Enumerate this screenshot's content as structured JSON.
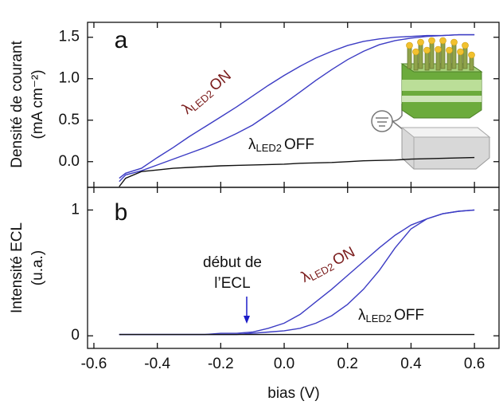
{
  "chart_data": [
    {
      "type": "line",
      "panel_label": "a",
      "y_label": [
        "Densité de courant",
        "(mA cm⁻²)"
      ],
      "x": [
        -0.52,
        -0.5,
        -0.45,
        -0.4,
        -0.35,
        -0.3,
        -0.25,
        -0.2,
        -0.15,
        -0.1,
        -0.05,
        0,
        0.05,
        0.1,
        0.15,
        0.2,
        0.25,
        0.3,
        0.35,
        0.4,
        0.45,
        0.5,
        0.55,
        0.6
      ],
      "xlim": [
        -0.62,
        0.68
      ],
      "ylim": [
        -0.31,
        1.68
      ],
      "yticks": [
        {
          "value": 0,
          "label": "0.0"
        },
        0.5,
        {
          "value": 1,
          "label": "1.0"
        },
        1.5
      ],
      "series": [
        {
          "color": "#3c3cc4",
          "values": [
            -0.2,
            -0.14,
            -0.08,
            0.05,
            0.17,
            0.3,
            0.42,
            0.54,
            0.66,
            0.79,
            0.92,
            1.04,
            1.15,
            1.25,
            1.33,
            1.4,
            1.45,
            1.48,
            1.5,
            1.51,
            1.52,
            1.52,
            1.53,
            1.53
          ]
        },
        {
          "color": "#3c3cc4",
          "values": [
            -0.24,
            -0.16,
            -0.11,
            -0.04,
            0.03,
            0.1,
            0.17,
            0.25,
            0.34,
            0.44,
            0.57,
            0.7,
            0.84,
            0.98,
            1.11,
            1.23,
            1.33,
            1.41,
            1.46,
            1.49,
            1.51,
            1.52,
            1.53,
            1.53
          ]
        },
        {
          "color": "#111111",
          "values": [
            -0.3,
            -0.2,
            -0.12,
            -0.1,
            -0.08,
            -0.07,
            -0.06,
            -0.05,
            -0.045,
            -0.04,
            -0.035,
            -0.03,
            -0.02,
            -0.015,
            -0.01,
            0,
            0.01,
            0.015,
            0.02,
            0.03,
            0.035,
            0.04,
            0.045,
            0.05
          ]
        }
      ],
      "annotations": [
        {
          "symbol": "λ",
          "subscript": "LED2",
          "text": "ON",
          "color": "#7a1c1c"
        },
        {
          "symbol": "λ",
          "subscript": "LED2",
          "text": "OFF",
          "color": "#111111"
        }
      ]
    },
    {
      "type": "line",
      "panel_label": "b",
      "y_label": [
        "Intensité ECL",
        "(u.a.)"
      ],
      "x_label": "bias (V)",
      "x": [
        -0.52,
        -0.5,
        -0.45,
        -0.4,
        -0.35,
        -0.3,
        -0.25,
        -0.2,
        -0.15,
        -0.1,
        -0.05,
        0,
        0.05,
        0.1,
        0.15,
        0.2,
        0.25,
        0.3,
        0.35,
        0.4,
        0.45,
        0.5,
        0.55,
        0.6
      ],
      "xlim": [
        -0.62,
        0.68
      ],
      "xticks": [
        -0.6,
        -0.4,
        -0.2,
        {
          "value": 0,
          "label": "0.0"
        },
        0.2,
        0.4,
        0.6
      ],
      "ylim": [
        -0.1,
        1.18
      ],
      "yticks": [
        0,
        1
      ],
      "series": [
        {
          "color": "#3c3cc4",
          "values": [
            0.01,
            0.01,
            0.01,
            0.01,
            0.01,
            0.01,
            0.01,
            0.02,
            0.02,
            0.03,
            0.06,
            0.1,
            0.17,
            0.27,
            0.37,
            0.48,
            0.59,
            0.7,
            0.8,
            0.88,
            0.93,
            0.97,
            0.99,
            1.0
          ]
        },
        {
          "color": "#3c3cc4",
          "values": [
            0.01,
            0.01,
            0.01,
            0.01,
            0.01,
            0.01,
            0.01,
            0.01,
            0.01,
            0.02,
            0.03,
            0.04,
            0.06,
            0.1,
            0.16,
            0.25,
            0.37,
            0.52,
            0.7,
            0.85,
            0.93,
            0.97,
            0.99,
            1.0
          ]
        },
        {
          "color": "#111111",
          "values": [
            0.01,
            0.01,
            0.01,
            0.01,
            0.01,
            0.01,
            0.01,
            0.01,
            0.01,
            0.01,
            0.01,
            0.01,
            0.01,
            0.01,
            0.01,
            0.01,
            0.01,
            0.01,
            0.01,
            0.01,
            0.01,
            0.01,
            0.01,
            0.01
          ]
        }
      ],
      "annotations": [
        {
          "symbol": "λ",
          "subscript": "LED2",
          "text": "ON",
          "color": "#7a1c1c"
        },
        {
          "symbol": "λ",
          "subscript": "LED2",
          "text": "OFF",
          "color": "#111111"
        },
        {
          "lines": [
            "début de",
            "l’ECL"
          ],
          "color": "#1c1cc8"
        }
      ]
    }
  ]
}
